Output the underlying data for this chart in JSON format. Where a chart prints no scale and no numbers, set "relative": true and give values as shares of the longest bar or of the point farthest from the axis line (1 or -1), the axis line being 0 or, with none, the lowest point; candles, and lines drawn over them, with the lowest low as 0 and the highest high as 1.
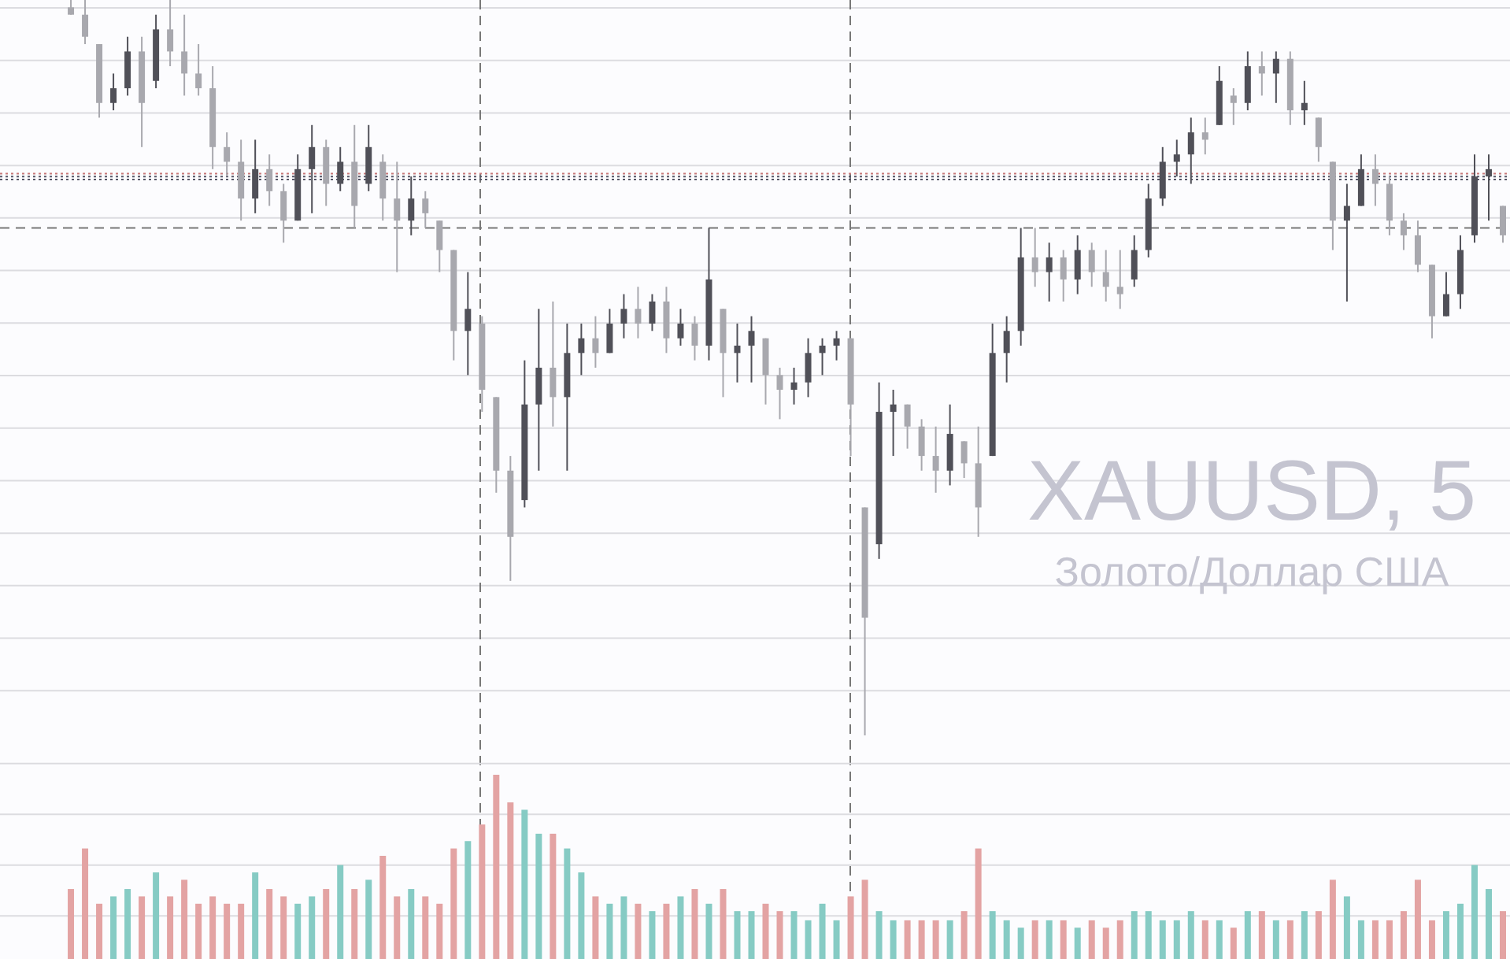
{
  "chart_data": [
    {
      "type": "candlestick",
      "title": "XAUUSD, 5",
      "subtitle": "Золото/Доллар США",
      "relative": true,
      "grid": "y",
      "categories": [
        null,
        null,
        null,
        null,
        null,
        null,
        null,
        null,
        null,
        null,
        null,
        null,
        null,
        null,
        null,
        null,
        null,
        null,
        null,
        null,
        null,
        null,
        null,
        null,
        null,
        null,
        null,
        null,
        null,
        null,
        null,
        null,
        null,
        null,
        null,
        null,
        null,
        null,
        null,
        null,
        null,
        null,
        null,
        null,
        null,
        null,
        null,
        null,
        null,
        null,
        null,
        null,
        null,
        null,
        null,
        null,
        null,
        null,
        null,
        null,
        null,
        null,
        null,
        null,
        null,
        null,
        null,
        null,
        null,
        null,
        null,
        null,
        null,
        null,
        null,
        null,
        null,
        null,
        null,
        null,
        null,
        null,
        null,
        null,
        null,
        null,
        null,
        null,
        null,
        null,
        null,
        null,
        null,
        null,
        null,
        null,
        null,
        null,
        null,
        null,
        null,
        null
      ],
      "ohlc": [
        [
          0.99,
          1.0,
          0.98,
          0.98
        ],
        [
          0.98,
          1.0,
          0.94,
          0.95
        ],
        [
          0.94,
          0.94,
          0.84,
          0.86
        ],
        [
          0.86,
          0.9,
          0.85,
          0.88
        ],
        [
          0.88,
          0.95,
          0.87,
          0.93
        ],
        [
          0.93,
          0.95,
          0.8,
          0.86
        ],
        [
          0.89,
          0.98,
          0.88,
          0.96
        ],
        [
          0.96,
          1.0,
          0.91,
          0.93
        ],
        [
          0.93,
          0.98,
          0.87,
          0.9
        ],
        [
          0.9,
          0.94,
          0.87,
          0.88
        ],
        [
          0.88,
          0.91,
          0.77,
          0.8
        ],
        [
          0.8,
          0.82,
          0.76,
          0.78
        ],
        [
          0.78,
          0.81,
          0.7,
          0.73
        ],
        [
          0.73,
          0.81,
          0.71,
          0.77
        ],
        [
          0.77,
          0.79,
          0.72,
          0.74
        ],
        [
          0.74,
          0.75,
          0.67,
          0.7
        ],
        [
          0.7,
          0.79,
          0.7,
          0.77
        ],
        [
          0.77,
          0.83,
          0.71,
          0.8
        ],
        [
          0.8,
          0.81,
          0.72,
          0.75
        ],
        [
          0.75,
          0.8,
          0.74,
          0.78
        ],
        [
          0.78,
          0.83,
          0.69,
          0.72
        ],
        [
          0.75,
          0.83,
          0.74,
          0.8
        ],
        [
          0.78,
          0.79,
          0.7,
          0.73
        ],
        [
          0.73,
          0.78,
          0.63,
          0.7
        ],
        [
          0.7,
          0.76,
          0.68,
          0.73
        ],
        [
          0.73,
          0.74,
          0.69,
          0.71
        ],
        [
          0.7,
          0.7,
          0.63,
          0.66
        ],
        [
          0.66,
          0.66,
          0.51,
          0.55
        ],
        [
          0.55,
          0.63,
          0.49,
          0.58
        ],
        [
          0.56,
          0.57,
          0.44,
          0.47
        ],
        [
          0.46,
          0.46,
          0.33,
          0.36
        ],
        [
          0.36,
          0.38,
          0.21,
          0.27
        ],
        [
          0.32,
          0.51,
          0.31,
          0.45
        ],
        [
          0.45,
          0.58,
          0.36,
          0.5
        ],
        [
          0.5,
          0.59,
          0.42,
          0.46
        ],
        [
          0.46,
          0.56,
          0.36,
          0.52
        ],
        [
          0.52,
          0.56,
          0.49,
          0.54
        ],
        [
          0.54,
          0.57,
          0.5,
          0.52
        ],
        [
          0.52,
          0.58,
          0.52,
          0.56
        ],
        [
          0.56,
          0.6,
          0.54,
          0.58
        ],
        [
          0.58,
          0.61,
          0.54,
          0.56
        ],
        [
          0.56,
          0.6,
          0.55,
          0.59
        ],
        [
          0.59,
          0.61,
          0.52,
          0.54
        ],
        [
          0.54,
          0.58,
          0.53,
          0.56
        ],
        [
          0.56,
          0.57,
          0.51,
          0.53
        ],
        [
          0.53,
          0.69,
          0.51,
          0.62
        ],
        [
          0.58,
          0.58,
          0.46,
          0.52
        ],
        [
          0.52,
          0.56,
          0.48,
          0.53
        ],
        [
          0.53,
          0.57,
          0.48,
          0.55
        ],
        [
          0.54,
          0.54,
          0.45,
          0.49
        ],
        [
          0.49,
          0.5,
          0.43,
          0.47
        ],
        [
          0.47,
          0.5,
          0.45,
          0.48
        ],
        [
          0.48,
          0.54,
          0.46,
          0.52
        ],
        [
          0.52,
          0.54,
          0.49,
          0.53
        ],
        [
          0.53,
          0.55,
          0.51,
          0.54
        ],
        [
          0.54,
          0.54,
          0.38,
          0.45
        ],
        [
          0.31,
          0.31,
          0.0,
          0.16
        ],
        [
          0.26,
          0.48,
          0.24,
          0.44
        ],
        [
          0.44,
          0.47,
          0.38,
          0.45
        ],
        [
          0.45,
          0.45,
          0.39,
          0.42
        ],
        [
          0.42,
          0.43,
          0.36,
          0.38
        ],
        [
          0.38,
          0.42,
          0.33,
          0.36
        ],
        [
          0.36,
          0.45,
          0.34,
          0.41
        ],
        [
          0.4,
          0.4,
          0.35,
          0.37
        ],
        [
          0.37,
          0.42,
          0.27,
          0.31
        ],
        [
          0.38,
          0.56,
          0.38,
          0.52
        ],
        [
          0.52,
          0.57,
          0.48,
          0.55
        ],
        [
          0.55,
          0.69,
          0.53,
          0.65
        ],
        [
          0.65,
          0.69,
          0.61,
          0.63
        ],
        [
          0.63,
          0.67,
          0.59,
          0.65
        ],
        [
          0.65,
          0.66,
          0.59,
          0.62
        ],
        [
          0.62,
          0.68,
          0.6,
          0.66
        ],
        [
          0.66,
          0.67,
          0.61,
          0.63
        ],
        [
          0.63,
          0.66,
          0.59,
          0.61
        ],
        [
          0.61,
          0.66,
          0.58,
          0.6
        ],
        [
          0.62,
          0.68,
          0.61,
          0.66
        ],
        [
          0.66,
          0.75,
          0.65,
          0.73
        ],
        [
          0.73,
          0.8,
          0.72,
          0.78
        ],
        [
          0.78,
          0.81,
          0.76,
          0.79
        ],
        [
          0.79,
          0.84,
          0.75,
          0.82
        ],
        [
          0.82,
          0.84,
          0.79,
          0.81
        ],
        [
          0.83,
          0.91,
          0.83,
          0.89
        ],
        [
          0.87,
          0.88,
          0.83,
          0.86
        ],
        [
          0.86,
          0.93,
          0.85,
          0.91
        ],
        [
          0.91,
          0.93,
          0.87,
          0.9
        ],
        [
          0.9,
          0.93,
          0.86,
          0.92
        ],
        [
          0.92,
          0.93,
          0.83,
          0.85
        ],
        [
          0.85,
          0.89,
          0.83,
          0.86
        ],
        [
          0.84,
          0.84,
          0.78,
          0.8
        ],
        [
          0.78,
          0.78,
          0.66,
          0.7
        ],
        [
          0.7,
          0.75,
          0.59,
          0.72
        ],
        [
          0.72,
          0.79,
          0.72,
          0.77
        ],
        [
          0.77,
          0.79,
          0.72,
          0.75
        ],
        [
          0.75,
          0.76,
          0.68,
          0.7
        ],
        [
          0.7,
          0.71,
          0.66,
          0.68
        ],
        [
          0.68,
          0.7,
          0.63,
          0.64
        ],
        [
          0.64,
          0.64,
          0.54,
          0.57
        ],
        [
          0.57,
          0.63,
          0.57,
          0.6
        ],
        [
          0.6,
          0.68,
          0.58,
          0.66
        ],
        [
          0.68,
          0.79,
          0.67,
          0.76
        ],
        [
          0.76,
          0.79,
          0.7,
          0.77
        ],
        [
          0.72,
          0.72,
          0.67,
          0.68
        ]
      ],
      "ref_lines": [
        {
          "axis": "y",
          "value": 0.764,
          "color": "#c87878",
          "line_style": "dotted"
        },
        {
          "axis": "y",
          "value": 0.76,
          "color": "#555566",
          "line_style": "dotted"
        },
        {
          "axis": "y",
          "value": 0.756,
          "color": "#555566",
          "line_style": "dotted"
        },
        {
          "axis": "y",
          "value": 0.69,
          "color": "#777777",
          "line_style": "dashed"
        }
      ]
    },
    {
      "type": "bar",
      "relative": true,
      "grid": "y",
      "categories": [
        null,
        null,
        null,
        null,
        null,
        null,
        null,
        null,
        null,
        null,
        null,
        null,
        null,
        null,
        null,
        null,
        null,
        null,
        null,
        null,
        null,
        null,
        null,
        null,
        null,
        null,
        null,
        null,
        null,
        null,
        null,
        null,
        null,
        null,
        null,
        null,
        null,
        null,
        null,
        null,
        null,
        null,
        null,
        null,
        null,
        null,
        null,
        null,
        null,
        null,
        null,
        null,
        null,
        null,
        null,
        null,
        null,
        null,
        null,
        null,
        null,
        null,
        null,
        null,
        null,
        null,
        null,
        null,
        null,
        null,
        null,
        null,
        null,
        null,
        null,
        null,
        null,
        null,
        null,
        null,
        null,
        null,
        null,
        null,
        null,
        null,
        null,
        null,
        null,
        null,
        null,
        null,
        null,
        null,
        null,
        null,
        null,
        null,
        null,
        null,
        null,
        null
      ],
      "values": [
        0.38,
        0.6,
        0.3,
        0.34,
        0.38,
        0.34,
        0.47,
        0.34,
        0.43,
        0.3,
        0.34,
        0.3,
        0.3,
        0.47,
        0.38,
        0.34,
        0.3,
        0.34,
        0.38,
        0.51,
        0.38,
        0.43,
        0.56,
        0.34,
        0.38,
        0.34,
        0.3,
        0.6,
        0.64,
        0.73,
        1.0,
        0.85,
        0.81,
        0.68,
        0.68,
        0.6,
        0.47,
        0.34,
        0.3,
        0.34,
        0.3,
        0.26,
        0.3,
        0.34,
        0.38,
        0.3,
        0.38,
        0.26,
        0.26,
        0.3,
        0.26,
        0.26,
        0.21,
        0.3,
        0.21,
        0.34,
        0.43,
        0.26,
        0.21,
        0.21,
        0.21,
        0.21,
        0.21,
        0.26,
        0.6,
        0.26,
        0.21,
        0.17,
        0.21,
        0.21,
        0.21,
        0.17,
        0.21,
        0.17,
        0.21,
        0.26,
        0.26,
        0.21,
        0.21,
        0.26,
        0.21,
        0.21,
        0.17,
        0.26,
        0.26,
        0.21,
        0.21,
        0.26,
        0.26,
        0.43,
        0.34,
        0.21,
        0.21,
        0.21,
        0.26,
        0.43,
        0.21,
        0.26,
        0.3,
        0.51,
        0.38,
        0.26
      ],
      "colors": [
        "#e3a3a3",
        "#e3a3a3",
        "#e3a3a3",
        "#86cbc4",
        "#86cbc4",
        "#e3a3a3",
        "#86cbc4",
        "#e3a3a3",
        "#e3a3a3",
        "#e3a3a3",
        "#e3a3a3",
        "#e3a3a3",
        "#e3a3a3",
        "#86cbc4",
        "#e3a3a3",
        "#e3a3a3",
        "#86cbc4",
        "#86cbc4",
        "#e3a3a3",
        "#86cbc4",
        "#e3a3a3",
        "#86cbc4",
        "#e3a3a3",
        "#e3a3a3",
        "#86cbc4",
        "#e3a3a3",
        "#e3a3a3",
        "#e3a3a3",
        "#86cbc4",
        "#e3a3a3",
        "#e3a3a3",
        "#e3a3a3",
        "#86cbc4",
        "#86cbc4",
        "#e3a3a3",
        "#86cbc4",
        "#86cbc4",
        "#e3a3a3",
        "#86cbc4",
        "#86cbc4",
        "#e3a3a3",
        "#86cbc4",
        "#e3a3a3",
        "#86cbc4",
        "#e3a3a3",
        "#86cbc4",
        "#e3a3a3",
        "#86cbc4",
        "#86cbc4",
        "#e3a3a3",
        "#e3a3a3",
        "#86cbc4",
        "#86cbc4",
        "#86cbc4",
        "#86cbc4",
        "#e3a3a3",
        "#e3a3a3",
        "#86cbc4",
        "#86cbc4",
        "#e3a3a3",
        "#e3a3a3",
        "#e3a3a3",
        "#86cbc4",
        "#e3a3a3",
        "#e3a3a3",
        "#86cbc4",
        "#86cbc4",
        "#86cbc4",
        "#e3a3a3",
        "#86cbc4",
        "#e3a3a3",
        "#86cbc4",
        "#e3a3a3",
        "#e3a3a3",
        "#e3a3a3",
        "#86cbc4",
        "#86cbc4",
        "#86cbc4",
        "#86cbc4",
        "#86cbc4",
        "#e3a3a3",
        "#86cbc4",
        "#e3a3a3",
        "#86cbc4",
        "#e3a3a3",
        "#86cbc4",
        "#e3a3a3",
        "#86cbc4",
        "#e3a3a3",
        "#e3a3a3",
        "#86cbc4",
        "#86cbc4",
        "#e3a3a3",
        "#e3a3a3",
        "#e3a3a3",
        "#e3a3a3",
        "#e3a3a3",
        "#86cbc4",
        "#86cbc4",
        "#86cbc4",
        "#86cbc4",
        "#e3a3a3"
      ]
    }
  ]
}
